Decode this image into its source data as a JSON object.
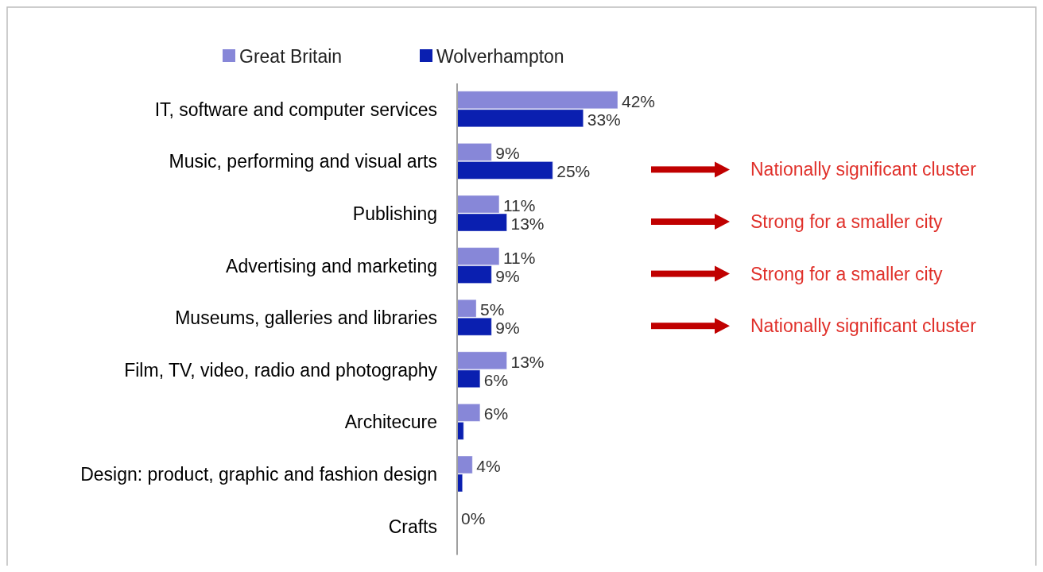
{
  "chart_data": {
    "type": "bar",
    "orientation": "horizontal",
    "categories": [
      "IT, software and computer services",
      "Music, performing and visual arts",
      "Publishing",
      "Advertising and marketing",
      "Museums, galleries and libraries",
      "Film, TV, video, radio and photography",
      "Architecure",
      "Design: product, graphic and fashion design",
      "Crafts"
    ],
    "series": [
      {
        "name": "Great Britain",
        "color": "#8787d8",
        "values": [
          42,
          9,
          11,
          11,
          5,
          13,
          6,
          4,
          0
        ],
        "value_labels": [
          "42%",
          "9%",
          "11%",
          "11%",
          "5%",
          "13%",
          "6%",
          "4%",
          "0%"
        ]
      },
      {
        "name": "Wolverhampton",
        "color": "#0a1fb0",
        "values": [
          33,
          25,
          13,
          9,
          9,
          6,
          1.7,
          1.4,
          0
        ],
        "value_labels": [
          "33%",
          "25%",
          "13%",
          "9%",
          "9%",
          "6%",
          null,
          null,
          null
        ]
      }
    ],
    "legend": "top",
    "annotations": [
      "Nationally significant cluster",
      "Strong for a smaller city",
      "Strong for a smaller city",
      "Nationally significant cluster"
    ]
  }
}
